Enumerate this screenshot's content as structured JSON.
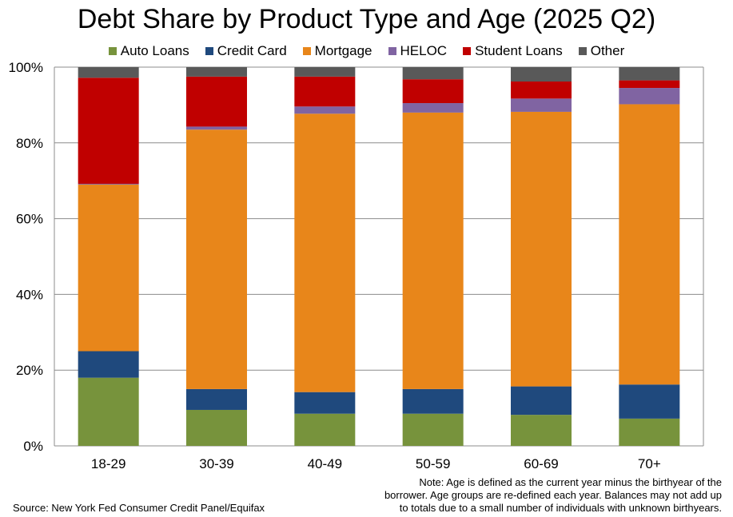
{
  "chart_data": {
    "type": "bar",
    "stacked": true,
    "title": "Debt Share by Product Type and Age (2025 Q2)",
    "categories": [
      "18-29",
      "30-39",
      "40-49",
      "50-59",
      "60-69",
      "70+"
    ],
    "yticks": [
      "0%",
      "20%",
      "40%",
      "60%",
      "80%",
      "100%"
    ],
    "ylim": [
      0,
      100
    ],
    "grid": true,
    "legend_position": "top",
    "series": [
      {
        "name": "Auto Loans",
        "color": "#77933C",
        "values": [
          18,
          9.5,
          8.5,
          8.5,
          8.2,
          7.2
        ]
      },
      {
        "name": "Credit Card",
        "color": "#1F497D",
        "values": [
          7,
          5.5,
          5.7,
          6.5,
          7.5,
          9
        ]
      },
      {
        "name": "Mortgage",
        "color": "#E8861A",
        "values": [
          44,
          68.5,
          73.5,
          73,
          72.5,
          74
        ]
      },
      {
        "name": "HELOC",
        "color": "#8064A2",
        "values": [
          0.2,
          0.8,
          1.9,
          2.5,
          3.5,
          4.3
        ]
      },
      {
        "name": "Student Loans",
        "color": "#C00000",
        "values": [
          28,
          13.2,
          7.9,
          6.3,
          4.5,
          2
        ]
      },
      {
        "name": "Other",
        "color": "#595959",
        "values": [
          2.8,
          2.5,
          2.5,
          3.2,
          3.8,
          3.5
        ]
      }
    ]
  },
  "notes": {
    "source": "Source: New York Fed Consumer Credit Panel/Equifax",
    "age_note_line1": "Note: Age is defined as the current year minus the birthyear of the",
    "age_note_line2": "borrower. Age groups are re-defined each year. Balances may not add up",
    "age_note_line3": "to totals due to a small number of individuals with unknown birthyears."
  }
}
